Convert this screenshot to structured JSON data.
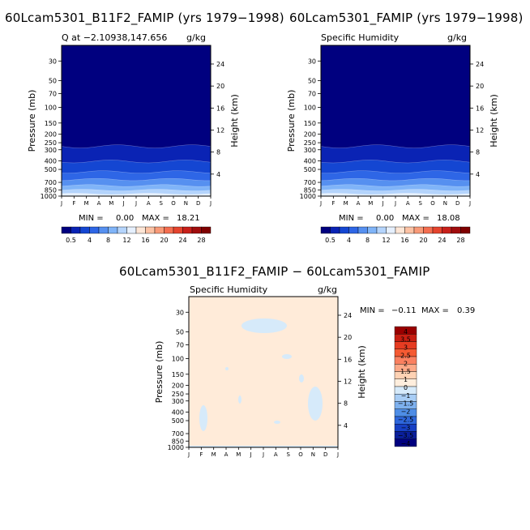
{
  "chart_data": [
    {
      "type": "heatmap",
      "title": "60Lcam5301_B11F2_FAMIP (yrs 1979−1998)",
      "subtitle_left": "Q at −2.10938,147.656",
      "units": "g/kg",
      "ylabel": "Pressure (mb)",
      "ylabel_right": "Height (km)",
      "yscale": "log",
      "ylim": [
        1000,
        20
      ],
      "pressure_ticks": [
        "30",
        "50",
        "70",
        "100",
        "150",
        "200",
        "250",
        "300",
        "400",
        "500",
        "700",
        "850",
        "1000"
      ],
      "height_ticks": [
        "24",
        "20",
        "16",
        "12",
        "8",
        "4"
      ],
      "months": [
        "J",
        "F",
        "M",
        "A",
        "M",
        "J",
        "J",
        "A",
        "S",
        "O",
        "N",
        "D",
        "J"
      ],
      "min_label": "MIN =",
      "min_value": "0.00",
      "max_label": "MAX =",
      "max_value": "18.21",
      "colorbar_labels": [
        "0.5",
        "4",
        "8",
        "12",
        "16",
        "20",
        "24",
        "28"
      ]
    },
    {
      "type": "heatmap",
      "title": "60Lcam5301_FAMIP (yrs 1979−1998)",
      "subtitle_left": "Specific Humidity",
      "units": "g/kg",
      "ylabel": "Pressure (mb)",
      "ylabel_right": "Height (km)",
      "yscale": "log",
      "ylim": [
        1000,
        20
      ],
      "pressure_ticks": [
        "30",
        "50",
        "70",
        "100",
        "150",
        "200",
        "250",
        "300",
        "400",
        "500",
        "700",
        "850",
        "1000"
      ],
      "height_ticks": [
        "24",
        "20",
        "16",
        "12",
        "8",
        "4"
      ],
      "months": [
        "J",
        "F",
        "M",
        "A",
        "M",
        "J",
        "J",
        "A",
        "S",
        "O",
        "N",
        "D",
        "J"
      ],
      "min_label": "MIN =",
      "min_value": "0.00",
      "max_label": "MAX =",
      "max_value": "18.08",
      "colorbar_labels": [
        "0.5",
        "4",
        "8",
        "12",
        "16",
        "20",
        "24",
        "28"
      ]
    },
    {
      "type": "heatmap",
      "title": "60Lcam5301_B11F2_FAMIP − 60Lcam5301_FAMIP",
      "subtitle_left": "Specific Humidity",
      "units": "g/kg",
      "ylabel": "Pressure (mb)",
      "ylabel_right": "Height (km)",
      "yscale": "log",
      "ylim": [
        1000,
        20
      ],
      "pressure_ticks": [
        "30",
        "50",
        "70",
        "100",
        "150",
        "200",
        "250",
        "300",
        "400",
        "500",
        "700",
        "850",
        "1000"
      ],
      "height_ticks": [
        "24",
        "20",
        "16",
        "12",
        "8",
        "4"
      ],
      "months": [
        "J",
        "F",
        "M",
        "A",
        "M",
        "J",
        "J",
        "A",
        "S",
        "O",
        "N",
        "D",
        "J"
      ],
      "min_label": "MIN =",
      "min_value": "−0.11",
      "max_label": "MAX =",
      "max_value": "0.39",
      "colorbar_labels": [
        "4",
        "3.5",
        "3",
        "2.5",
        "2",
        "1.5",
        "1",
        "0",
        "−1",
        "−1.5",
        "−2",
        "−2.5",
        "−3",
        "−3.5",
        "−4"
      ]
    }
  ],
  "colors": {
    "humidity_scale": [
      "#00007f",
      "#0a23b4",
      "#1446d2",
      "#2e66e6",
      "#5690f0",
      "#80b4f8",
      "#b4d4fc",
      "#e6f0fe",
      "#fde6d6",
      "#fcc2a4",
      "#f99a78",
      "#f46e50",
      "#e5442e",
      "#c8201a",
      "#a00d0d",
      "#7f0000"
    ],
    "diff_scale": [
      "#990000",
      "#c81e12",
      "#e63c22",
      "#f55a32",
      "#fa8060",
      "#fca988",
      "#fed2b4",
      "#ffeedd",
      "#d6eafa",
      "#a8cdf5",
      "#7eb1ef",
      "#4e8de6",
      "#2e67dc",
      "#1740c4",
      "#0a1f9a",
      "#00007f"
    ],
    "diff_background": "#ffebd9",
    "diff_blob": "#d6eafa"
  }
}
